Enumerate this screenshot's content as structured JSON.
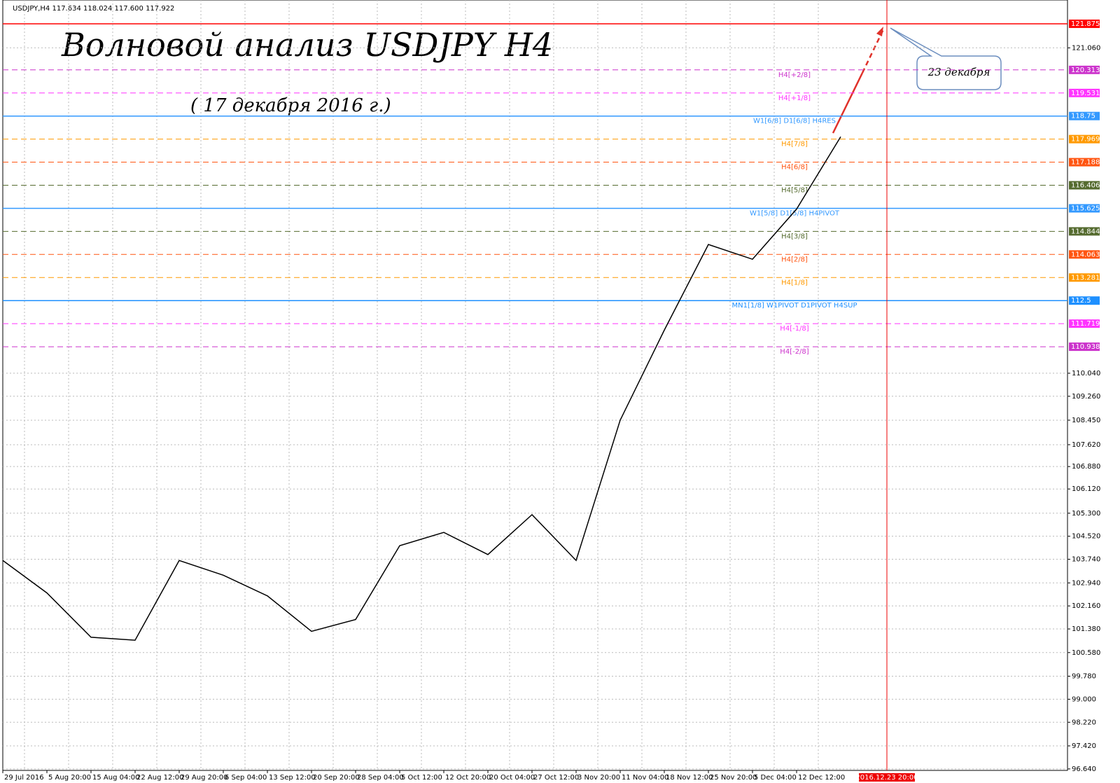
{
  "chart_data": {
    "type": "line",
    "header": "USDJPY,H4  117.634 118.024 117.600 117.922",
    "title": "Волновой анализ USDJPY H4",
    "subtitle": "( 17 декабря 2016 г.)",
    "callout": "23 декабря",
    "forecast_date": "2016.12.23 20:00",
    "categories": [
      "29 Jul 2016",
      "5 Aug 20:00",
      "15 Aug 04:00",
      "22 Aug 12:00",
      "29 Aug 20:00",
      "6 Sep 04:00",
      "13 Sep 12:00",
      "20 Sep 20:00",
      "28 Sep 04:00",
      "5 Oct 12:00",
      "12 Oct 20:00",
      "20 Oct 04:00",
      "27 Oct 12:00",
      "3 Nov 20:00",
      "11 Nov 04:00",
      "18 Nov 12:00",
      "25 Nov 20:00",
      "5 Dec 04:00",
      "12 Dec 12:00",
      null
    ],
    "values": [
      103.7,
      102.6,
      101.1,
      101.0,
      103.7,
      103.2,
      102.5,
      101.3,
      101.7,
      104.2,
      104.65,
      103.9,
      105.25,
      103.7,
      108.45,
      111.5,
      114.4,
      113.9,
      115.6,
      118.05
    ],
    "color": "#000000",
    "ylim": [
      96.59,
      122.68
    ],
    "yticks": [
      {
        "value": 121.06,
        "label": "121.060"
      },
      {
        "value": 110.04,
        "label": "110.040"
      },
      {
        "value": 109.26,
        "label": "109.260"
      },
      {
        "value": 108.45,
        "label": "108.450"
      },
      {
        "value": 107.62,
        "label": "107.620"
      },
      {
        "value": 106.88,
        "label": "106.880"
      },
      {
        "value": 106.12,
        "label": "106.120"
      },
      {
        "value": 105.3,
        "label": "105.300"
      },
      {
        "value": 104.52,
        "label": "104.520"
      },
      {
        "value": 103.74,
        "label": "103.740"
      },
      {
        "value": 102.94,
        "label": "102.940"
      },
      {
        "value": 102.16,
        "label": "102.160"
      },
      {
        "value": 101.38,
        "label": "101.380"
      },
      {
        "value": 100.58,
        "label": "100.580"
      },
      {
        "value": 99.78,
        "label": "99.780"
      },
      {
        "value": 99,
        "label": "99.000"
      },
      {
        "value": 98.22,
        "label": "98.220"
      },
      {
        "value": 97.42,
        "label": "97.420"
      },
      {
        "value": 96.64,
        "label": "96.640"
      }
    ],
    "grid": true,
    "levels": [
      {
        "value": 121.875,
        "label": null,
        "color": "#ff0000",
        "style": "solid"
      },
      {
        "value": 120.313,
        "label": "H4[+2/8]",
        "color": "#cc33cc",
        "style": "dashed"
      },
      {
        "value": 119.531,
        "label": "H4[+1/8]",
        "color": "#ff33ff",
        "style": "dashed"
      },
      {
        "value": 118.75,
        "label": "W1[6/8] D1[6/8] H4RES",
        "color": "#3399ff",
        "style": "solid"
      },
      {
        "value": 117.969,
        "label": "H4[7/8]",
        "color": "#ff9900",
        "style": "dashed"
      },
      {
        "value": 117.188,
        "label": "H4[6/8]",
        "color": "#ff5511",
        "style": "dashed"
      },
      {
        "value": 116.406,
        "label": "H4[5/8]",
        "color": "#556b2f",
        "style": "dashed"
      },
      {
        "value": 115.625,
        "label": "W1[5/8] D1[5/8] H4PIVOT",
        "color": "#3399ff",
        "style": "solid"
      },
      {
        "value": 114.844,
        "label": "H4[3/8]",
        "color": "#556b2f",
        "style": "dashed"
      },
      {
        "value": 114.063,
        "label": "H4[2/8]",
        "color": "#ff5511",
        "style": "dashed"
      },
      {
        "value": 113.281,
        "label": "H4[1/8]",
        "color": "#ff9900",
        "style": "dashed"
      },
      {
        "value": 112.5,
        "label": "MN1[1/8] W1PIVOT D1PIVOT H4SUP",
        "color": "#1e90ff",
        "style": "solid"
      },
      {
        "value": 111.719,
        "label": "H4[-1/8]",
        "color": "#ff33ff",
        "style": "dashed"
      },
      {
        "value": 110.938,
        "label": "H4[-2/8]",
        "color": "#cc33cc",
        "style": "dashed"
      }
    ]
  }
}
